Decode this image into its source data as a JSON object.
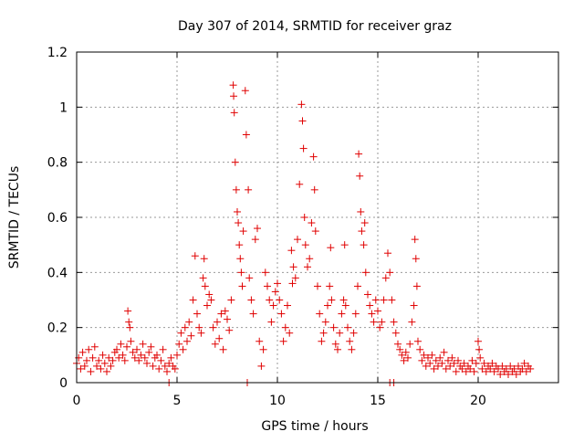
{
  "chart_data": {
    "type": "scatter",
    "title": "Day 307 of 2014, SRMTID for receiver graz",
    "xlabel": "GPS time / hours",
    "ylabel": "SRMTID / TECUs",
    "xlim": [
      0,
      24
    ],
    "ylim": [
      0,
      1.2
    ],
    "x_ticks": [
      0,
      5,
      10,
      15,
      20
    ],
    "x_tick_labels": [
      "0",
      "5",
      "10",
      "15",
      "20"
    ],
    "y_ticks": [
      0,
      0.2,
      0.4,
      0.6,
      0.8,
      1.0,
      1.2
    ],
    "y_tick_labels": [
      "0",
      "0.2",
      "0.4",
      "0.6",
      "0.8",
      "1",
      "1.2"
    ],
    "grid": true,
    "marker": "+",
    "series": [
      {
        "name": "SRMTID",
        "color": "#e00000",
        "points": [
          [
            0.0,
            0.07
          ],
          [
            0.1,
            0.09
          ],
          [
            0.2,
            0.05
          ],
          [
            0.3,
            0.11
          ],
          [
            0.4,
            0.06
          ],
          [
            0.5,
            0.08
          ],
          [
            0.6,
            0.12
          ],
          [
            0.7,
            0.04
          ],
          [
            0.8,
            0.09
          ],
          [
            0.9,
            0.13
          ],
          [
            1.0,
            0.06
          ],
          [
            1.1,
            0.08
          ],
          [
            1.2,
            0.05
          ],
          [
            1.3,
            0.1
          ],
          [
            1.4,
            0.07
          ],
          [
            1.5,
            0.04
          ],
          [
            1.6,
            0.09
          ],
          [
            1.7,
            0.06
          ],
          [
            1.8,
            0.08
          ],
          [
            1.9,
            0.11
          ],
          [
            2.0,
            0.12
          ],
          [
            2.1,
            0.09
          ],
          [
            2.2,
            0.14
          ],
          [
            2.3,
            0.1
          ],
          [
            2.4,
            0.08
          ],
          [
            2.5,
            0.13
          ],
          [
            2.55,
            0.26
          ],
          [
            2.6,
            0.22
          ],
          [
            2.65,
            0.2
          ],
          [
            2.7,
            0.15
          ],
          [
            2.8,
            0.11
          ],
          [
            2.9,
            0.09
          ],
          [
            3.0,
            0.12
          ],
          [
            3.1,
            0.08
          ],
          [
            3.2,
            0.1
          ],
          [
            3.3,
            0.14
          ],
          [
            3.4,
            0.09
          ],
          [
            3.5,
            0.07
          ],
          [
            3.6,
            0.11
          ],
          [
            3.7,
            0.13
          ],
          [
            3.8,
            0.06
          ],
          [
            3.9,
            0.09
          ],
          [
            4.0,
            0.1
          ],
          [
            4.1,
            0.05
          ],
          [
            4.2,
            0.08
          ],
          [
            4.3,
            0.12
          ],
          [
            4.4,
            0.06
          ],
          [
            4.5,
            0.04
          ],
          [
            4.6,
            0.07
          ],
          [
            4.7,
            0.09
          ],
          [
            4.8,
            0.06
          ],
          [
            4.9,
            0.05
          ],
          [
            5.0,
            0.1
          ],
          [
            5.1,
            0.14
          ],
          [
            5.2,
            0.18
          ],
          [
            5.3,
            0.12
          ],
          [
            5.4,
            0.2
          ],
          [
            5.5,
            0.15
          ],
          [
            5.6,
            0.22
          ],
          [
            5.7,
            0.17
          ],
          [
            5.8,
            0.3
          ],
          [
            5.9,
            0.46
          ],
          [
            6.0,
            0.25
          ],
          [
            6.1,
            0.2
          ],
          [
            6.2,
            0.18
          ],
          [
            6.3,
            0.38
          ],
          [
            6.35,
            0.45
          ],
          [
            6.4,
            0.35
          ],
          [
            6.5,
            0.28
          ],
          [
            6.6,
            0.32
          ],
          [
            6.7,
            0.3
          ],
          [
            6.8,
            0.2
          ],
          [
            6.9,
            0.14
          ],
          [
            7.0,
            0.22
          ],
          [
            7.1,
            0.16
          ],
          [
            7.2,
            0.25
          ],
          [
            7.3,
            0.12
          ],
          [
            7.4,
            0.26
          ],
          [
            7.5,
            0.23
          ],
          [
            7.6,
            0.19
          ],
          [
            7.7,
            0.3
          ],
          [
            7.8,
            1.08
          ],
          [
            7.82,
            1.04
          ],
          [
            7.85,
            0.98
          ],
          [
            7.9,
            0.8
          ],
          [
            7.95,
            0.7
          ],
          [
            8.0,
            0.62
          ],
          [
            8.05,
            0.58
          ],
          [
            8.1,
            0.5
          ],
          [
            8.15,
            0.45
          ],
          [
            8.2,
            0.4
          ],
          [
            8.25,
            0.35
          ],
          [
            8.3,
            0.55
          ],
          [
            8.4,
            1.06
          ],
          [
            8.45,
            0.9
          ],
          [
            8.5,
            0.0
          ],
          [
            8.55,
            0.7
          ],
          [
            8.6,
            0.38
          ],
          [
            8.7,
            0.3
          ],
          [
            8.8,
            0.25
          ],
          [
            8.9,
            0.52
          ],
          [
            9.0,
            0.56
          ],
          [
            9.1,
            0.15
          ],
          [
            9.2,
            0.06
          ],
          [
            9.3,
            0.12
          ],
          [
            9.4,
            0.4
          ],
          [
            9.5,
            0.35
          ],
          [
            9.6,
            0.3
          ],
          [
            9.7,
            0.22
          ],
          [
            9.8,
            0.28
          ],
          [
            9.9,
            0.33
          ],
          [
            10.0,
            0.36
          ],
          [
            10.1,
            0.3
          ],
          [
            10.2,
            0.25
          ],
          [
            10.3,
            0.15
          ],
          [
            10.4,
            0.2
          ],
          [
            10.5,
            0.28
          ],
          [
            10.6,
            0.18
          ],
          [
            10.7,
            0.48
          ],
          [
            10.75,
            0.36
          ],
          [
            10.8,
            0.42
          ],
          [
            10.9,
            0.38
          ],
          [
            11.0,
            0.52
          ],
          [
            11.1,
            0.72
          ],
          [
            11.2,
            1.01
          ],
          [
            11.25,
            0.95
          ],
          [
            11.3,
            0.85
          ],
          [
            11.35,
            0.6
          ],
          [
            11.4,
            0.5
          ],
          [
            11.5,
            0.42
          ],
          [
            11.6,
            0.45
          ],
          [
            11.7,
            0.58
          ],
          [
            11.8,
            0.82
          ],
          [
            11.85,
            0.7
          ],
          [
            11.9,
            0.55
          ],
          [
            12.0,
            0.35
          ],
          [
            12.1,
            0.25
          ],
          [
            12.2,
            0.15
          ],
          [
            12.3,
            0.18
          ],
          [
            12.4,
            0.22
          ],
          [
            12.5,
            0.28
          ],
          [
            12.6,
            0.35
          ],
          [
            12.65,
            0.49
          ],
          [
            12.7,
            0.3
          ],
          [
            12.8,
            0.2
          ],
          [
            12.9,
            0.14
          ],
          [
            13.0,
            0.12
          ],
          [
            13.1,
            0.18
          ],
          [
            13.2,
            0.25
          ],
          [
            13.3,
            0.3
          ],
          [
            13.35,
            0.5
          ],
          [
            13.4,
            0.28
          ],
          [
            13.5,
            0.2
          ],
          [
            13.6,
            0.15
          ],
          [
            13.7,
            0.12
          ],
          [
            13.8,
            0.18
          ],
          [
            13.9,
            0.25
          ],
          [
            14.0,
            0.35
          ],
          [
            14.05,
            0.83
          ],
          [
            14.1,
            0.75
          ],
          [
            14.15,
            0.62
          ],
          [
            14.2,
            0.55
          ],
          [
            14.3,
            0.5
          ],
          [
            14.35,
            0.58
          ],
          [
            14.4,
            0.4
          ],
          [
            14.5,
            0.32
          ],
          [
            14.6,
            0.28
          ],
          [
            14.7,
            0.25
          ],
          [
            14.8,
            0.22
          ],
          [
            14.9,
            0.3
          ],
          [
            15.0,
            0.26
          ],
          [
            15.1,
            0.2
          ],
          [
            15.2,
            0.22
          ],
          [
            15.3,
            0.3
          ],
          [
            15.4,
            0.38
          ],
          [
            15.5,
            0.47
          ],
          [
            15.6,
            0.4
          ],
          [
            15.7,
            0.3
          ],
          [
            15.8,
            0.22
          ],
          [
            15.9,
            0.18
          ],
          [
            16.0,
            0.14
          ],
          [
            16.1,
            0.12
          ],
          [
            16.2,
            0.1
          ],
          [
            16.3,
            0.08
          ],
          [
            16.4,
            0.11
          ],
          [
            16.5,
            0.09
          ],
          [
            16.6,
            0.14
          ],
          [
            16.7,
            0.22
          ],
          [
            16.8,
            0.28
          ],
          [
            16.85,
            0.52
          ],
          [
            16.9,
            0.45
          ],
          [
            16.95,
            0.35
          ],
          [
            17.0,
            0.15
          ],
          [
            17.1,
            0.12
          ],
          [
            17.2,
            0.08
          ],
          [
            17.3,
            0.1
          ],
          [
            17.4,
            0.06
          ],
          [
            17.5,
            0.09
          ],
          [
            17.6,
            0.07
          ],
          [
            17.7,
            0.1
          ],
          [
            17.8,
            0.05
          ],
          [
            17.9,
            0.08
          ],
          [
            18.0,
            0.06
          ],
          [
            18.1,
            0.09
          ],
          [
            18.2,
            0.07
          ],
          [
            18.3,
            0.11
          ],
          [
            18.4,
            0.05
          ],
          [
            18.5,
            0.08
          ],
          [
            18.6,
            0.06
          ],
          [
            18.7,
            0.09
          ],
          [
            18.8,
            0.07
          ],
          [
            18.9,
            0.04
          ],
          [
            19.0,
            0.08
          ],
          [
            19.1,
            0.06
          ],
          [
            19.2,
            0.05
          ],
          [
            19.3,
            0.07
          ],
          [
            19.4,
            0.04
          ],
          [
            19.5,
            0.06
          ],
          [
            19.6,
            0.05
          ],
          [
            19.7,
            0.08
          ],
          [
            19.8,
            0.04
          ],
          [
            19.9,
            0.07
          ],
          [
            20.0,
            0.15
          ],
          [
            20.05,
            0.12
          ],
          [
            20.1,
            0.09
          ],
          [
            20.2,
            0.05
          ],
          [
            20.3,
            0.07
          ],
          [
            20.4,
            0.04
          ],
          [
            20.5,
            0.06
          ],
          [
            20.6,
            0.05
          ],
          [
            20.7,
            0.07
          ],
          [
            20.8,
            0.04
          ],
          [
            20.9,
            0.06
          ],
          [
            21.0,
            0.05
          ],
          [
            21.1,
            0.03
          ],
          [
            21.2,
            0.06
          ],
          [
            21.3,
            0.04
          ],
          [
            21.4,
            0.05
          ],
          [
            21.5,
            0.03
          ],
          [
            21.6,
            0.06
          ],
          [
            21.7,
            0.04
          ],
          [
            21.8,
            0.05
          ],
          [
            21.9,
            0.03
          ],
          [
            22.0,
            0.06
          ],
          [
            22.1,
            0.04
          ],
          [
            22.2,
            0.05
          ],
          [
            22.3,
            0.07
          ],
          [
            22.4,
            0.04
          ],
          [
            22.5,
            0.06
          ],
          [
            22.6,
            0.05
          ],
          [
            4.6,
            0.0
          ],
          [
            15.6,
            0.0
          ],
          [
            15.8,
            0.0
          ]
        ]
      }
    ]
  }
}
